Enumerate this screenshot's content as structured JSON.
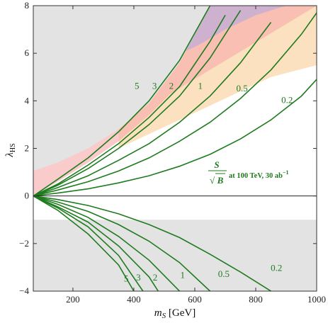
{
  "chart_data": {
    "type": "line",
    "xlabel_main": "m",
    "xlabel_sub": "S",
    "xlabel_unit": " [GeV]",
    "ylabel_main": "λ",
    "ylabel_sub": "HS",
    "xlim": [
      70,
      1000
    ],
    "ylim": [
      -4,
      8
    ],
    "x_ticks": [
      200,
      400,
      600,
      800,
      1000
    ],
    "y_ticks": [
      -4,
      -2,
      0,
      2,
      4,
      6,
      8
    ],
    "legend": {
      "num": "S",
      "den": "B",
      "text": " at 100 TeV, 30 ab",
      "sup": "−1"
    },
    "regions": [
      {
        "name": "excluded-upper",
        "color": "#e3e3e3",
        "boundary_x": [
          70,
          150,
          250,
          350,
          450,
          550,
          650
        ],
        "boundary_y": [
          1.05,
          1.4,
          2.0,
          2.8,
          3.9,
          5.6,
          8.0
        ]
      },
      {
        "name": "excluded-lower",
        "color": "#e3e3e3",
        "y_range": [
          -4,
          -1
        ]
      },
      {
        "name": "red-band",
        "color": "#f5a8a8",
        "lower_x": [
          70,
          150,
          250,
          350,
          450,
          520
        ],
        "lower_y": [
          0,
          0.6,
          1.4,
          2.3,
          3.4,
          4.3
        ]
      },
      {
        "name": "orange-band",
        "color": "#fbd9b0",
        "lower_x": [
          350,
          450,
          550,
          650,
          750,
          850,
          1000
        ],
        "lower_y": [
          2.0,
          2.6,
          3.2,
          3.8,
          4.4,
          5.0,
          5.5
        ]
      },
      {
        "name": "blue-band",
        "color": "#a9a6e8",
        "lower_x": [
          540,
          620,
          700,
          800,
          900,
          1000
        ],
        "lower_y": [
          5.9,
          6.4,
          7.0,
          7.6,
          8.0,
          8.0
        ]
      }
    ],
    "series": [
      {
        "label": "5",
        "upper_x": [
          70,
          150,
          250,
          350,
          450,
          550,
          650
        ],
        "upper_y": [
          0,
          0.7,
          1.6,
          2.7,
          4.0,
          5.7,
          8.0
        ],
        "lower_x": [
          70,
          150,
          250,
          350,
          400
        ],
        "lower_y": [
          0,
          -0.6,
          -1.6,
          -2.9,
          -4.0
        ]
      },
      {
        "label": "3",
        "upper_x": [
          70,
          150,
          250,
          350,
          450,
          550,
          650,
          700
        ],
        "upper_y": [
          0,
          0.5,
          1.3,
          2.2,
          3.3,
          4.6,
          6.5,
          7.6
        ],
        "lower_x": [
          70,
          150,
          250,
          350,
          430
        ],
        "lower_y": [
          0,
          -0.5,
          -1.3,
          -2.5,
          -4.0
        ]
      },
      {
        "label": "2",
        "upper_x": [
          70,
          150,
          250,
          350,
          450,
          550,
          650,
          750
        ],
        "upper_y": [
          0,
          0.45,
          1.15,
          2.0,
          3.0,
          4.2,
          5.8,
          7.8
        ],
        "lower_x": [
          70,
          150,
          250,
          350,
          450,
          480
        ],
        "lower_y": [
          0,
          -0.45,
          -1.1,
          -2.1,
          -3.4,
          -4.0
        ]
      },
      {
        "label": "1",
        "upper_x": [
          70,
          150,
          250,
          350,
          450,
          550,
          650,
          750,
          850
        ],
        "upper_y": [
          0,
          0.35,
          0.85,
          1.5,
          2.2,
          3.1,
          4.2,
          5.6,
          7.3
        ],
        "lower_x": [
          70,
          150,
          250,
          350,
          450,
          550
        ],
        "lower_y": [
          0,
          -0.35,
          -0.9,
          -1.7,
          -2.7,
          -4.0
        ]
      },
      {
        "label": "0.5",
        "upper_x": [
          70,
          150,
          250,
          350,
          450,
          550,
          650,
          750,
          850,
          950,
          1000
        ],
        "upper_y": [
          0,
          0.25,
          0.6,
          1.05,
          1.6,
          2.3,
          3.1,
          4.1,
          5.3,
          6.8,
          7.7
        ],
        "lower_x": [
          70,
          150,
          250,
          350,
          450,
          550,
          650
        ],
        "lower_y": [
          0,
          -0.25,
          -0.65,
          -1.2,
          -1.9,
          -2.8,
          -4.0
        ]
      },
      {
        "label": "0.2",
        "upper_x": [
          70,
          150,
          250,
          350,
          450,
          550,
          650,
          750,
          850,
          950,
          1000
        ],
        "upper_y": [
          0,
          0.12,
          0.3,
          0.55,
          0.85,
          1.25,
          1.75,
          2.4,
          3.2,
          4.2,
          4.9
        ],
        "lower_x": [
          70,
          150,
          250,
          350,
          450,
          550,
          650,
          750,
          850
        ],
        "lower_y": [
          0,
          -0.15,
          -0.4,
          -0.75,
          -1.2,
          -1.75,
          -2.45,
          -3.2,
          -4.0
        ]
      }
    ],
    "upper_label_positions_x": [
      410,
      468,
      523,
      618,
      755,
      903
    ],
    "upper_label_positions_y": [
      4.5,
      4.5,
      4.5,
      4.5,
      4.4,
      3.9
    ],
    "lower_label_positions_x": [
      375,
      415,
      470,
      560,
      695,
      868
    ],
    "lower_label_positions_y": [
      -3.6,
      -3.55,
      -3.55,
      -3.45,
      -3.4,
      -3.15
    ],
    "colors": {
      "contour": "#1e7b1e",
      "zero_line": "#222222"
    }
  }
}
